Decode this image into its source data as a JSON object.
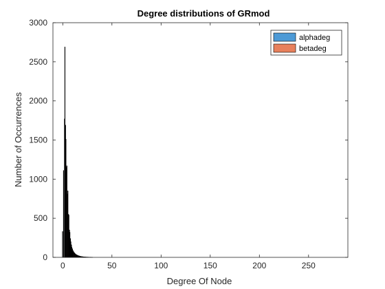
{
  "chart_data": {
    "type": "bar",
    "title": "Degree distributions of GRmod",
    "xlabel": "Degree Of Node",
    "ylabel": "Number of Occurrences",
    "xlim": [
      -10,
      290
    ],
    "ylim": [
      0,
      3000
    ],
    "xticks": [
      0,
      50,
      100,
      150,
      200,
      250
    ],
    "yticks": [
      0,
      500,
      1000,
      1500,
      2000,
      2500,
      3000
    ],
    "grid": false,
    "legend_position": "top-right",
    "series": [
      {
        "name": "alphadeg",
        "color": "#4d9ad6",
        "x": [
          0,
          1,
          2,
          3,
          4,
          5,
          6,
          7,
          8,
          9,
          10,
          11,
          12,
          13,
          14,
          15,
          16,
          17,
          18,
          19,
          20,
          21,
          22,
          23,
          24,
          25,
          26,
          27,
          28,
          29,
          30
        ],
        "values": [
          330,
          1110,
          1770,
          1690,
          1150,
          810,
          550,
          350,
          240,
          160,
          110,
          80,
          60,
          45,
          35,
          28,
          22,
          18,
          14,
          11,
          9,
          7,
          6,
          5,
          4,
          3,
          3,
          2,
          2,
          2,
          1
        ]
      },
      {
        "name": "betadeg",
        "color": "#e8805c",
        "x": [
          0,
          1,
          2,
          3,
          4,
          5,
          6,
          7,
          8,
          9,
          10,
          11,
          12,
          13,
          14,
          15,
          16,
          17,
          18,
          19,
          20,
          21,
          22,
          23,
          24,
          25,
          26,
          27,
          28,
          29,
          30
        ],
        "values": [
          0,
          0,
          2690,
          1510,
          1170,
          850,
          540,
          320,
          200,
          130,
          90,
          65,
          50,
          38,
          30,
          24,
          19,
          15,
          12,
          10,
          8,
          6,
          5,
          4,
          3,
          3,
          2,
          2,
          2,
          1,
          1
        ]
      }
    ]
  }
}
